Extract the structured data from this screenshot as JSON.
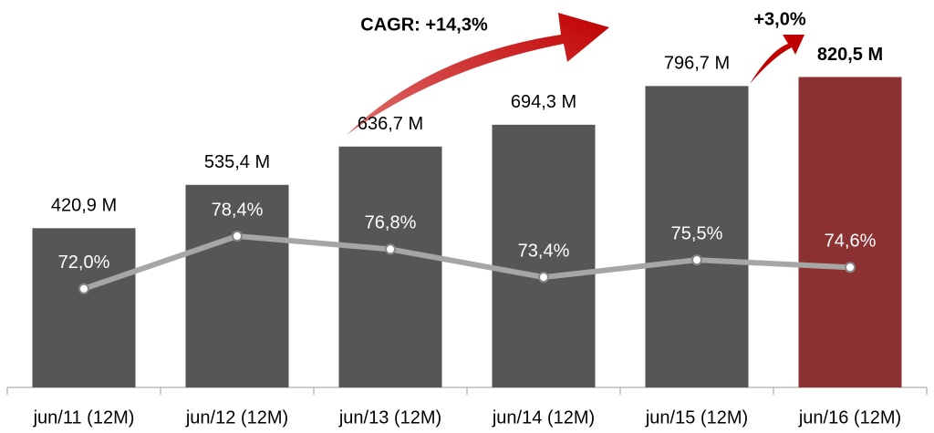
{
  "chart_data": {
    "type": "bar",
    "categories": [
      "jun/11 (12M)",
      "jun/12 (12M)",
      "jun/13 (12M)",
      "jun/14 (12M)",
      "jun/15 (12M)",
      "jun/16 (12M)"
    ],
    "series": [
      {
        "type": "bar",
        "colors": [
          "#565656",
          "#565656",
          "#565656",
          "#565656",
          "#565656",
          "#8b3131"
        ],
        "values": [
          420.9,
          535.4,
          636.7,
          694.3,
          796.7,
          820.5
        ],
        "value_labels": [
          "420,9 M",
          "535,4 M",
          "636,7 M",
          "694,3 M",
          "796,7 M",
          "820,5 M"
        ]
      },
      {
        "type": "line",
        "axis": "y2",
        "color": "#a6a6a6",
        "values": [
          72.0,
          78.4,
          76.8,
          73.4,
          75.5,
          74.6
        ],
        "value_labels": [
          "72,0%",
          "78,4%",
          "76,8%",
          "73,4%",
          "75,5%",
          "74,6%"
        ]
      }
    ],
    "ylim": [
      0,
      1000
    ],
    "y2lim": [
      60,
      106
    ],
    "annotations": [
      "CAGR: +14,3%",
      "+3,0%"
    ]
  }
}
